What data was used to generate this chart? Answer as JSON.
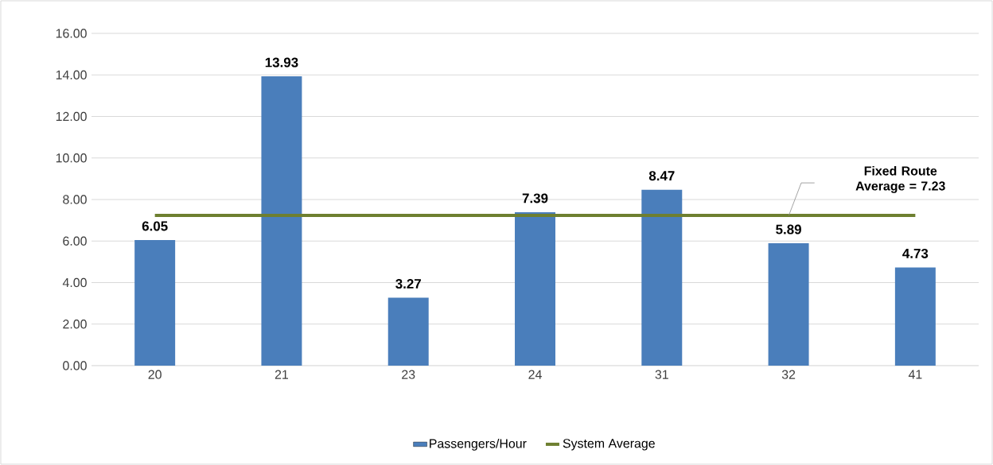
{
  "chart_data": {
    "type": "bar",
    "categories": [
      "20",
      "21",
      "23",
      "24",
      "31",
      "32",
      "41"
    ],
    "series": [
      {
        "name": "Passengers/Hour",
        "color": "#4a7ebb",
        "values": [
          6.05,
          13.93,
          3.27,
          7.39,
          8.47,
          5.89,
          4.73
        ],
        "value_labels": [
          "6.05",
          "13.93",
          "3.27",
          "7.39",
          "8.47",
          "5.89",
          "4.73"
        ]
      },
      {
        "name": "System Average",
        "type": "line",
        "color": "#6e7f30",
        "values": [
          7.23,
          7.23,
          7.23,
          7.23,
          7.23,
          7.23,
          7.23
        ]
      }
    ],
    "ylim": [
      0,
      16
    ],
    "yticks": [
      {
        "value": 0,
        "label": "0.00"
      },
      {
        "value": 2,
        "label": "2.00"
      },
      {
        "value": 4,
        "label": "4.00"
      },
      {
        "value": 6,
        "label": "6.00"
      },
      {
        "value": 8,
        "label": "8.00"
      },
      {
        "value": 10,
        "label": "10.00"
      },
      {
        "value": 12,
        "label": "12.00"
      },
      {
        "value": 14,
        "label": "14.00"
      },
      {
        "value": 16,
        "label": "16.00"
      }
    ],
    "grid": "y",
    "legend": "bottom",
    "annotations": [
      "Fixed Route Average = 7.23"
    ]
  }
}
